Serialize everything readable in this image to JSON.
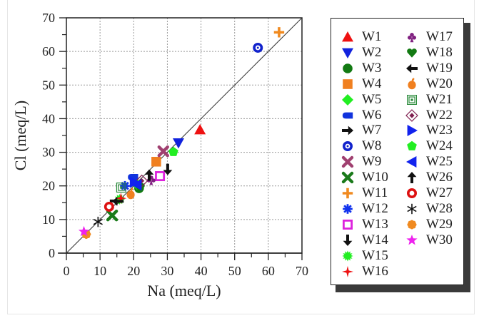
{
  "chart_data": {
    "type": "scatter",
    "title": "",
    "xlabel": "Na (meq/L)",
    "ylabel": "Cl (meq/L)",
    "xlim": [
      0,
      70
    ],
    "ylim": [
      0,
      70
    ],
    "xticks": [
      0,
      10,
      20,
      30,
      40,
      50,
      60,
      70
    ],
    "yticks": [
      0,
      10,
      20,
      30,
      40,
      50,
      60,
      70
    ],
    "xtick_labels": [
      "0",
      "10",
      "20",
      "30",
      "40",
      "50",
      "60",
      "70"
    ],
    "ytick_labels": [
      "0",
      "10",
      "20",
      "30",
      "40",
      "50",
      "60",
      "70"
    ],
    "grid": true,
    "reference_line": {
      "label": "1:1 line",
      "x": [
        0,
        70
      ],
      "y": [
        0,
        70
      ]
    },
    "legend_position": "right-outside",
    "series": [
      {
        "name": "W1",
        "marker": "triangle-up",
        "color": "#ee1111",
        "x": 39.7,
        "y": 36.7
      },
      {
        "name": "W2",
        "marker": "triangle-down",
        "color": "#1122dd",
        "x": 33.3,
        "y": 32.8
      },
      {
        "name": "W3",
        "marker": "circle",
        "color": "#127a12",
        "x": 21.6,
        "y": 19.3
      },
      {
        "name": "W4",
        "marker": "square",
        "color": "#f08020",
        "x": 26.7,
        "y": 27.2
      },
      {
        "name": "W5",
        "marker": "diamond",
        "color": "#22ee22",
        "x": 21.0,
        "y": 20.5
      },
      {
        "name": "W6",
        "marker": "half-oval",
        "color": "#1133dd",
        "x": 19.8,
        "y": 22.6
      },
      {
        "name": "W7",
        "marker": "arrow-right",
        "color": "#111111",
        "x": 14.6,
        "y": 15.5
      },
      {
        "name": "W8",
        "marker": "ring-dot",
        "color": "#1122cc",
        "x": 56.9,
        "y": 61.1
      },
      {
        "name": "W9",
        "marker": "x-thick",
        "color": "#a04070",
        "x": 28.8,
        "y": 30.3
      },
      {
        "name": "W10",
        "marker": "x-thick",
        "color": "#1a7a1a",
        "x": 13.6,
        "y": 11.2
      },
      {
        "name": "W11",
        "marker": "plus-thick",
        "color": "#f08a20",
        "x": 63.2,
        "y": 65.7
      },
      {
        "name": "W12",
        "marker": "asterisk-bold",
        "color": "#1133ee",
        "x": 17.4,
        "y": 20.0
      },
      {
        "name": "W13",
        "marker": "square-open",
        "color": "#dd22dd",
        "x": 27.8,
        "y": 22.9
      },
      {
        "name": "W14",
        "marker": "arrow-down",
        "color": "#111111",
        "x": 30.1,
        "y": 24.9
      },
      {
        "name": "W15",
        "marker": "burst",
        "color": "#22ee22",
        "x": 15.8,
        "y": 16.0
      },
      {
        "name": "W16",
        "marker": "star4",
        "color": "#ee1111",
        "x": 16.2,
        "y": 16.3
      },
      {
        "name": "W17",
        "marker": "club",
        "color": "#802080",
        "x": 25.2,
        "y": 21.8
      },
      {
        "name": "W18",
        "marker": "heart",
        "color": "#127a12",
        "x": 21.8,
        "y": 19.6
      },
      {
        "name": "W19",
        "marker": "arrow-left",
        "color": "#111111",
        "x": 15.3,
        "y": 15.4
      },
      {
        "name": "W20",
        "marker": "apple",
        "color": "#f08020",
        "x": 19.1,
        "y": 17.6
      },
      {
        "name": "W21",
        "marker": "square-concentric",
        "color": "#2a8a3a",
        "x": 16.3,
        "y": 19.5
      },
      {
        "name": "W22",
        "marker": "diamond-concentric",
        "color": "#802050",
        "x": 22.4,
        "y": 21.5
      },
      {
        "name": "W23",
        "marker": "triangle-right",
        "color": "#1122ee",
        "x": 20.2,
        "y": 21.1
      },
      {
        "name": "W24",
        "marker": "pentagon",
        "color": "#22ee22",
        "x": 31.8,
        "y": 30.1
      },
      {
        "name": "W25",
        "marker": "triangle-left",
        "color": "#1122ee",
        "x": 21.0,
        "y": 20.3
      },
      {
        "name": "W26",
        "marker": "arrow-up",
        "color": "#111111",
        "x": 24.6,
        "y": 23.2
      },
      {
        "name": "W27",
        "marker": "ring",
        "color": "#dd1111",
        "x": 12.7,
        "y": 13.8
      },
      {
        "name": "W28",
        "marker": "asterisk",
        "color": "#111111",
        "x": 9.4,
        "y": 9.3
      },
      {
        "name": "W29",
        "marker": "flower",
        "color": "#f08a20",
        "x": 5.9,
        "y": 5.6
      },
      {
        "name": "W30",
        "marker": "star5",
        "color": "#ee22ee",
        "x": 5.2,
        "y": 6.4
      }
    ]
  }
}
